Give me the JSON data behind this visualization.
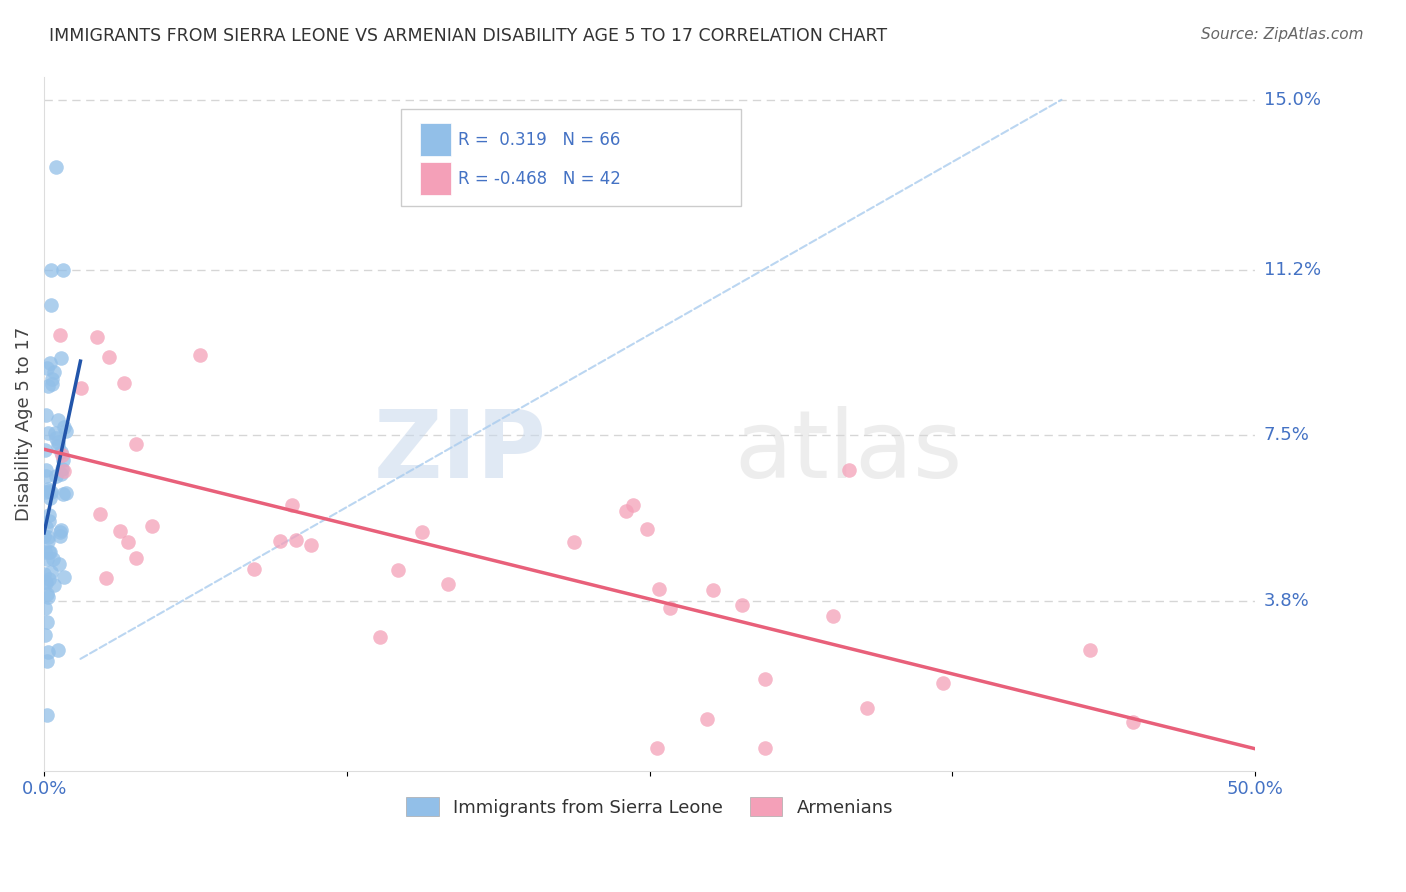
{
  "title": "IMMIGRANTS FROM SIERRA LEONE VS ARMENIAN DISABILITY AGE 5 TO 17 CORRELATION CHART",
  "source": "Source: ZipAtlas.com",
  "ylabel": "Disability Age 5 to 17",
  "xlim": [
    0.0,
    0.5
  ],
  "ylim": [
    0.0,
    0.155
  ],
  "ytick_labels_right": [
    "15.0%",
    "11.2%",
    "7.5%",
    "3.8%"
  ],
  "ytick_values_right": [
    0.15,
    0.112,
    0.075,
    0.038
  ],
  "blue_R": "0.319",
  "blue_N": "66",
  "pink_R": "-0.468",
  "pink_N": "42",
  "blue_color": "#92BFE8",
  "pink_color": "#F4A0B8",
  "blue_line_color": "#2255AA",
  "pink_line_color": "#E8607A",
  "blue_label": "Immigrants from Sierra Leone",
  "pink_label": "Armenians",
  "background_color": "#FFFFFF",
  "grid_color": "#CCCCCC",
  "watermark_zip": "ZIP",
  "watermark_atlas": "atlas",
  "title_color": "#333333",
  "axis_color": "#4472C4",
  "source_color": "#666666"
}
